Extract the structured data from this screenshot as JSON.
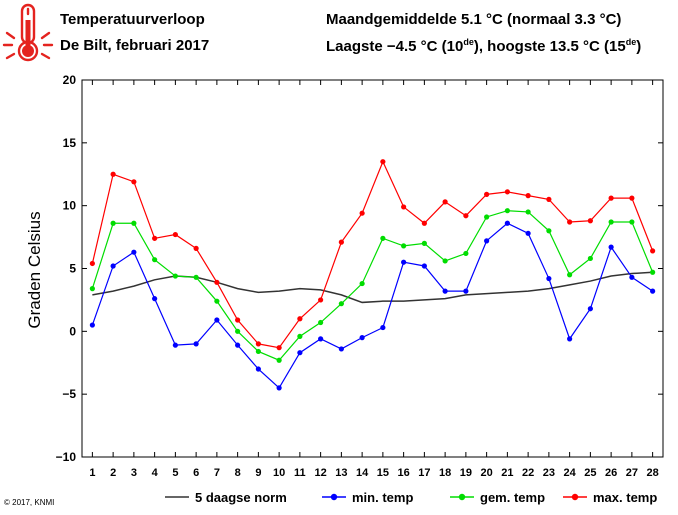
{
  "header": {
    "title": "Temperatuurverloop",
    "subtitle": "De Bilt, februari 2017",
    "mean_text": "Maandgemiddelde 5.1 °C (normaal 3.3 °C)",
    "range_lowest": "Laagste −4.5 °C (10",
    "range_lowest_sup": "de",
    "range_mid": "), hoogste 13.5 °C (15",
    "range_highest_sup": "de",
    "range_end": ")"
  },
  "copyright": "© 2017, KNMI",
  "icon": "thermometer-icon",
  "chart_data": {
    "type": "line",
    "title": "",
    "xlabel": "",
    "ylabel": "Graden Celsius",
    "xlim": [
      0.5,
      28.5
    ],
    "ylim": [
      -10,
      20
    ],
    "yticks": [
      -10,
      -5,
      0,
      5,
      10,
      15,
      20
    ],
    "ytick_labels": [
      "−10",
      "−5",
      "0",
      "5",
      "10",
      "15",
      "20"
    ],
    "x": [
      1,
      2,
      3,
      4,
      5,
      6,
      7,
      8,
      9,
      10,
      11,
      12,
      13,
      14,
      15,
      16,
      17,
      18,
      19,
      20,
      21,
      22,
      23,
      24,
      25,
      26,
      27,
      28
    ],
    "grid": false,
    "legend_position": "bottom",
    "series": [
      {
        "name": "5 daagse norm",
        "color": "#333333",
        "markers": false,
        "values": [
          2.9,
          3.2,
          3.6,
          4.1,
          4.4,
          4.3,
          3.9,
          3.4,
          3.1,
          3.2,
          3.4,
          3.3,
          2.9,
          2.3,
          2.4,
          2.4,
          2.5,
          2.6,
          2.9,
          3.0,
          3.1,
          3.2,
          3.4,
          3.7,
          4.0,
          4.4,
          4.6,
          4.7
        ]
      },
      {
        "name": "min. temp",
        "color": "#0000ff",
        "markers": true,
        "values": [
          0.5,
          5.2,
          6.3,
          2.6,
          -1.1,
          -1.0,
          0.9,
          -1.1,
          -3.0,
          -4.5,
          -1.7,
          -0.6,
          -1.4,
          -0.5,
          0.3,
          5.5,
          5.2,
          3.2,
          3.2,
          7.2,
          8.6,
          7.8,
          4.2,
          -0.6,
          1.8,
          6.7,
          4.3,
          3.2
        ]
      },
      {
        "name": "gem. temp",
        "color": "#00dd00",
        "markers": true,
        "values": [
          3.4,
          8.6,
          8.6,
          5.7,
          4.4,
          4.3,
          2.4,
          0.0,
          -1.6,
          -2.3,
          -0.4,
          0.7,
          2.2,
          3.8,
          7.4,
          6.8,
          7.0,
          5.6,
          6.2,
          9.1,
          9.6,
          9.5,
          8.0,
          4.5,
          5.8,
          8.7,
          8.7,
          4.7
        ]
      },
      {
        "name": "max. temp",
        "color": "#ff0000",
        "markers": true,
        "values": [
          5.4,
          12.5,
          11.9,
          7.4,
          7.7,
          6.6,
          3.9,
          0.9,
          -1.0,
          -1.3,
          1.0,
          2.5,
          7.1,
          9.4,
          13.5,
          9.9,
          8.6,
          10.3,
          9.2,
          10.9,
          11.1,
          10.8,
          10.5,
          8.7,
          8.8,
          10.6,
          10.6,
          6.4
        ]
      }
    ]
  }
}
